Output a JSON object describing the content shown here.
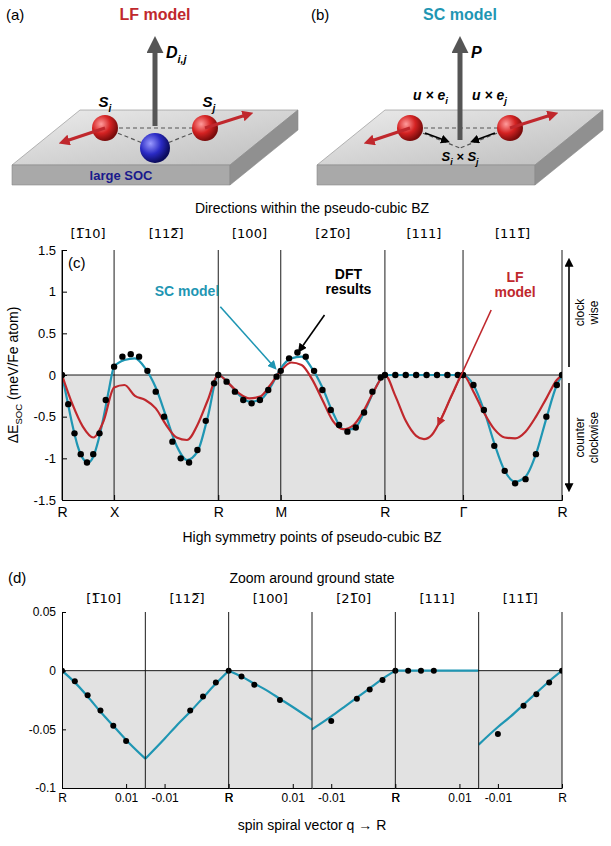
{
  "diagrams": [
    {
      "panel": "(a)",
      "title": "LF model",
      "color": "#c0282d",
      "vector": [
        "D",
        "i,j"
      ],
      "spins": [
        [
          "S",
          "i"
        ],
        [
          "S",
          "j"
        ]
      ],
      "site": "large SOC"
    },
    {
      "panel": "(b)",
      "title": "SC model",
      "color": "#1f96b3",
      "vector": [
        "P"
      ],
      "displacements": [
        [
          "u × e",
          "i"
        ],
        [
          "u × e",
          "j"
        ]
      ],
      "product": [
        "S",
        "i",
        " × S",
        "j"
      ]
    }
  ],
  "chart_data": [
    {
      "type": "line",
      "panel": "(c)",
      "title": "Directions within the pseudo-cubic BZ",
      "directions": [
        "[1̅10]",
        "[112̅]",
        "[100]",
        "[21̅0]",
        "[111]",
        "[111̅]"
      ],
      "xlabel": "High symmetry points of pseudo-cubic BZ",
      "ylabel": [
        "ΔE",
        "SOC",
        " (meV/Fe atom)"
      ],
      "annotations": [
        "clock wise",
        "counter clockwise"
      ],
      "xlim": [
        0,
        4.8
      ],
      "xticks": [
        {
          "value": 0,
          "label": "R"
        },
        {
          "value": 0.5,
          "label": "X"
        },
        {
          "value": 1.5,
          "label": "R"
        },
        {
          "value": 2.1,
          "label": "M"
        },
        {
          "value": 3.1,
          "label": "R"
        },
        {
          "value": 3.85,
          "label": "Γ"
        },
        {
          "value": 4.8,
          "label": "R"
        }
      ],
      "ylim": [
        -1.5,
        1.5
      ],
      "yticks": [
        -1.5,
        -1,
        -0.5,
        0,
        0.5,
        1,
        1.5
      ],
      "grid": "x",
      "series": [
        {
          "name": "SC model",
          "type": "line",
          "color": "#1f96b3",
          "line_style": "solid",
          "x": [
            0,
            0.05,
            0.1,
            0.15,
            0.2,
            0.25,
            0.3,
            0.35,
            0.4,
            0.45,
            0.5,
            0.6,
            0.7,
            0.8,
            0.9,
            1.0,
            1.1,
            1.2,
            1.3,
            1.4,
            1.5,
            1.6,
            1.7,
            1.8,
            1.9,
            2.0,
            2.1,
            2.2,
            2.3,
            2.4,
            2.5,
            2.6,
            2.7,
            2.8,
            2.9,
            3.0,
            3.1,
            3.85,
            3.95,
            4.05,
            4.15,
            4.25,
            4.35,
            4.45,
            4.55,
            4.65,
            4.75,
            4.8
          ],
          "values": [
            0,
            -0.3,
            -0.6,
            -0.85,
            -1.0,
            -1.05,
            -0.98,
            -0.78,
            -0.5,
            -0.18,
            0.1,
            0.18,
            0.2,
            0.08,
            -0.15,
            -0.5,
            -0.85,
            -1.02,
            -0.92,
            -0.5,
            0,
            -0.1,
            -0.24,
            -0.32,
            -0.3,
            -0.15,
            0.08,
            0.2,
            0.22,
            0.08,
            -0.15,
            -0.45,
            -0.65,
            -0.65,
            -0.45,
            -0.18,
            0,
            0,
            -0.12,
            -0.42,
            -0.82,
            -1.15,
            -1.28,
            -1.22,
            -0.95,
            -0.52,
            -0.12,
            0
          ]
        },
        {
          "name": "LF model",
          "type": "line",
          "color": "#c0282d",
          "line_style": "solid",
          "x": [
            0,
            0.1,
            0.2,
            0.3,
            0.4,
            0.5,
            0.6,
            0.7,
            0.8,
            0.9,
            1.0,
            1.1,
            1.2,
            1.3,
            1.4,
            1.5,
            1.6,
            1.7,
            1.8,
            1.9,
            2.0,
            2.1,
            2.2,
            2.3,
            2.4,
            2.5,
            2.6,
            2.7,
            2.8,
            2.9,
            3.0,
            3.1,
            3.2,
            3.3,
            3.4,
            3.475,
            3.55,
            3.65,
            3.75,
            3.85,
            3.95,
            4.05,
            4.15,
            4.25,
            4.35,
            4.45,
            4.55,
            4.65,
            4.75,
            4.8
          ],
          "values": [
            0,
            -0.35,
            -0.62,
            -0.75,
            -0.55,
            -0.15,
            -0.12,
            -0.25,
            -0.3,
            -0.4,
            -0.6,
            -0.75,
            -0.78,
            -0.6,
            -0.3,
            0,
            -0.1,
            -0.22,
            -0.28,
            -0.26,
            -0.12,
            0.05,
            0.15,
            0.12,
            -0.05,
            -0.3,
            -0.55,
            -0.65,
            -0.6,
            -0.42,
            -0.18,
            0,
            -0.25,
            -0.55,
            -0.73,
            -0.77,
            -0.72,
            -0.5,
            -0.22,
            0,
            -0.2,
            -0.45,
            -0.65,
            -0.75,
            -0.76,
            -0.68,
            -0.5,
            -0.28,
            -0.06,
            0
          ]
        },
        {
          "name": "DFT results",
          "type": "scatter",
          "color": "#000000",
          "marker": "circle",
          "x": [
            0,
            0.06,
            0.12,
            0.18,
            0.24,
            0.3,
            0.36,
            0.42,
            0.5,
            0.58,
            0.66,
            0.74,
            0.82,
            0.9,
            0.98,
            1.06,
            1.14,
            1.22,
            1.3,
            1.38,
            1.46,
            1.5,
            1.58,
            1.66,
            1.74,
            1.82,
            1.9,
            1.98,
            2.06,
            2.1,
            2.18,
            2.26,
            2.34,
            2.42,
            2.5,
            2.58,
            2.66,
            2.74,
            2.82,
            2.9,
            2.98,
            3.06,
            3.1,
            3.2,
            3.3,
            3.4,
            3.5,
            3.6,
            3.7,
            3.8,
            3.85,
            3.95,
            4.05,
            4.15,
            4.25,
            4.35,
            4.45,
            4.55,
            4.65,
            4.75,
            4.8
          ],
          "values": [
            0,
            -0.35,
            -0.7,
            -0.95,
            -1.05,
            -0.95,
            -0.7,
            -0.3,
            0.1,
            0.22,
            0.25,
            0.22,
            0.05,
            -0.2,
            -0.5,
            -0.8,
            -1.0,
            -1.05,
            -0.9,
            -0.55,
            -0.1,
            0,
            -0.08,
            -0.2,
            -0.3,
            -0.34,
            -0.3,
            -0.18,
            -0.02,
            0.05,
            0.2,
            0.27,
            0.22,
            0.05,
            -0.18,
            -0.42,
            -0.6,
            -0.68,
            -0.63,
            -0.45,
            -0.2,
            -0.03,
            0,
            0,
            0,
            0,
            0,
            0,
            0,
            0,
            0,
            -0.12,
            -0.42,
            -0.85,
            -1.15,
            -1.3,
            -1.25,
            -0.95,
            -0.5,
            -0.12,
            0
          ]
        }
      ]
    },
    {
      "type": "line",
      "panel": "(d)",
      "title": "Zoom around ground state",
      "xlabel": "spin spiral vector q → R",
      "ylim": [
        -0.1,
        0.05
      ],
      "yticks": [
        -0.1,
        -0.05,
        0,
        0.05
      ],
      "panels": [
        {
          "direction": "[1̅10]",
          "xlim": [
            0,
            0.013
          ],
          "xticks": [
            {
              "value": 0,
              "label": "R"
            },
            0.01
          ],
          "series": [
            {
              "type": "line",
              "color": "#1f96b3",
              "line_style": "solid",
              "x": [
                0,
                0.002,
                0.004,
                0.006,
                0.008,
                0.01,
                0.013
              ],
              "values": [
                0,
                -0.01,
                -0.022,
                -0.035,
                -0.047,
                -0.059,
                -0.075
              ]
            },
            {
              "type": "scatter",
              "color": "#000000",
              "marker": "circle",
              "x": [
                0,
                0.002,
                0.004,
                0.006,
                0.008,
                0.01
              ],
              "values": [
                0,
                -0.009,
                -0.021,
                -0.034,
                -0.047,
                -0.06
              ]
            }
          ]
        },
        {
          "direction": "[112̅]",
          "xlim": [
            -0.013,
            0
          ],
          "xticks": [
            -0.01,
            {
              "value": 0,
              "label": "R"
            }
          ],
          "series": [
            {
              "type": "line",
              "color": "#1f96b3",
              "line_style": "solid",
              "x": [
                -0.013,
                -0.01,
                -0.008,
                -0.006,
                -0.004,
                -0.002,
                0
              ],
              "values": [
                -0.075,
                -0.058,
                -0.046,
                -0.035,
                -0.023,
                -0.011,
                0
              ]
            },
            {
              "type": "scatter",
              "color": "#000000",
              "marker": "circle",
              "x": [
                -0.006,
                -0.004,
                -0.002,
                0
              ],
              "values": [
                -0.034,
                -0.022,
                -0.01,
                0
              ]
            }
          ]
        },
        {
          "direction": "[100]",
          "xlim": [
            0,
            0.013
          ],
          "xticks": [
            {
              "value": 0,
              "label": "R"
            },
            0.01
          ],
          "series": [
            {
              "type": "line",
              "color": "#1f96b3",
              "line_style": "solid",
              "x": [
                0,
                0.002,
                0.004,
                0.006,
                0.008,
                0.01,
                0.013
              ],
              "values": [
                0,
                -0.005,
                -0.011,
                -0.017,
                -0.024,
                -0.031,
                -0.042
              ]
            },
            {
              "type": "scatter",
              "color": "#000000",
              "marker": "circle",
              "x": [
                0,
                0.002,
                0.004,
                0.008
              ],
              "values": [
                0,
                -0.005,
                -0.012,
                -0.025
              ]
            }
          ]
        },
        {
          "direction": "[21̅0]",
          "xlim": [
            -0.013,
            0
          ],
          "xticks": [
            -0.01,
            {
              "value": 0,
              "label": "R"
            }
          ],
          "series": [
            {
              "type": "line",
              "color": "#1f96b3",
              "line_style": "solid",
              "x": [
                -0.013,
                -0.01,
                -0.008,
                -0.006,
                -0.004,
                -0.002,
                0
              ],
              "values": [
                -0.05,
                -0.039,
                -0.031,
                -0.023,
                -0.015,
                -0.007,
                0
              ]
            },
            {
              "type": "scatter",
              "color": "#000000",
              "marker": "circle",
              "x": [
                -0.01,
                -0.006,
                -0.004,
                -0.002,
                0
              ],
              "values": [
                -0.043,
                -0.024,
                -0.016,
                -0.008,
                0
              ]
            }
          ]
        },
        {
          "direction": "[111]",
          "xlim": [
            0,
            0.013
          ],
          "xticks": [
            {
              "value": 0,
              "label": "R"
            },
            0.01
          ],
          "series": [
            {
              "type": "line",
              "color": "#1f96b3",
              "line_style": "solid",
              "x": [
                0,
                0.013
              ],
              "values": [
                0,
                0
              ]
            },
            {
              "type": "scatter",
              "color": "#000000",
              "marker": "circle",
              "x": [
                0,
                0.002,
                0.004,
                0.006
              ],
              "values": [
                0,
                0,
                0,
                0
              ]
            }
          ]
        },
        {
          "direction": "[111̅]",
          "xlim": [
            -0.013,
            0
          ],
          "xticks": [
            -0.01,
            {
              "value": 0,
              "label": "R"
            }
          ],
          "series": [
            {
              "type": "line",
              "color": "#1f96b3",
              "line_style": "solid",
              "x": [
                -0.013,
                -0.01,
                -0.008,
                -0.006,
                -0.004,
                -0.002,
                0
              ],
              "values": [
                -0.063,
                -0.048,
                -0.039,
                -0.029,
                -0.019,
                -0.009,
                0
              ]
            },
            {
              "type": "scatter",
              "color": "#000000",
              "marker": "circle",
              "x": [
                -0.01,
                -0.006,
                -0.004,
                -0.002,
                0
              ],
              "values": [
                -0.054,
                -0.03,
                -0.02,
                -0.01,
                0
              ]
            }
          ]
        }
      ]
    }
  ]
}
